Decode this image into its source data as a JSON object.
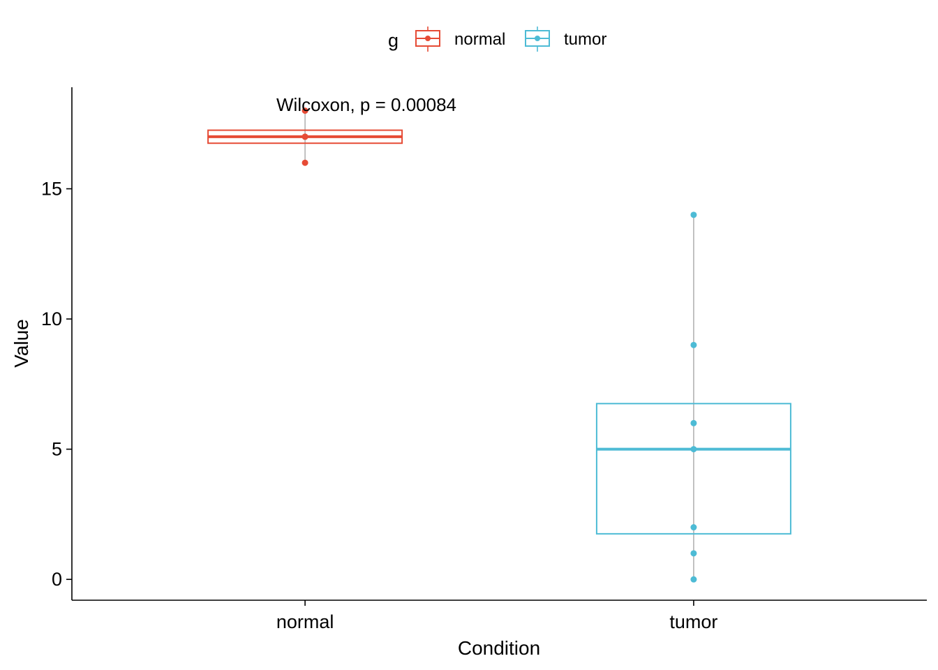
{
  "chart_data": {
    "type": "boxplot",
    "xlabel": "Condition",
    "ylabel": "Value",
    "ylim": [
      -0.8,
      18.9
    ],
    "yticks": [
      0,
      5,
      10,
      15
    ],
    "categories": [
      "normal",
      "tumor"
    ],
    "legend": {
      "title": "g",
      "placement": "top",
      "entries": [
        {
          "name": "normal",
          "color": "#E64B35"
        },
        {
          "name": "tumor",
          "color": "#4DBBD5"
        }
      ]
    },
    "annotation": "Wilcoxon, p = 0.00084",
    "series": [
      {
        "name": "normal",
        "color": "#E64B35",
        "box": {
          "q1": 16.75,
          "median": 17,
          "q3": 17.25,
          "whisker_low": 16,
          "whisker_high": 18
        },
        "points": [
          16,
          17,
          17,
          18
        ]
      },
      {
        "name": "tumor",
        "color": "#4DBBD5",
        "box": {
          "q1": 1.75,
          "median": 5,
          "q3": 6.75,
          "whisker_low": 0,
          "whisker_high": 14
        },
        "points": [
          0,
          1,
          2,
          5,
          6,
          9,
          14
        ]
      }
    ],
    "whisker_color": "#B3B3B3",
    "grid": false
  }
}
